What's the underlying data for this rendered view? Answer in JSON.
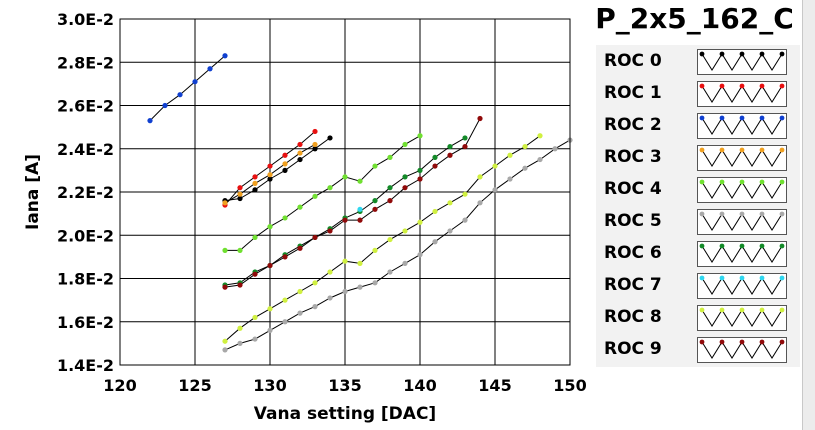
{
  "chart_data": {
    "type": "line",
    "title": "P_2x5_162_C",
    "xlabel": "Vana setting [DAC]",
    "ylabel": "Iana [A]",
    "xlim": [
      120,
      150
    ],
    "ylim": [
      0.014,
      0.03
    ],
    "x_ticks": [
      "120",
      "125",
      "130",
      "135",
      "140",
      "145",
      "150"
    ],
    "y_ticks": [
      "1.4E-2",
      "1.6E-2",
      "1.8E-2",
      "2.0E-2",
      "2.2E-2",
      "2.4E-2",
      "2.6E-2",
      "2.8E-2",
      "3.0E-2"
    ],
    "grid": true,
    "legend_position": "right",
    "series": [
      {
        "name": "ROC 0",
        "color": "#000000",
        "x": [
          127,
          128,
          129,
          130,
          131,
          132,
          133,
          134
        ],
        "y": [
          0.0216,
          0.0217,
          0.0221,
          0.0226,
          0.023,
          0.0235,
          0.024,
          0.0245
        ]
      },
      {
        "name": "ROC 1",
        "color": "#e81010",
        "x": [
          127,
          128,
          129,
          130,
          131,
          132,
          133
        ],
        "y": [
          0.0214,
          0.0222,
          0.0227,
          0.0232,
          0.0237,
          0.0242,
          0.0248
        ]
      },
      {
        "name": "ROC 2",
        "color": "#1040d0",
        "x": [
          122,
          123,
          124,
          125,
          126,
          127
        ],
        "y": [
          0.0253,
          0.026,
          0.0265,
          0.0271,
          0.0277,
          0.0283
        ]
      },
      {
        "name": "ROC 3",
        "color": "#f0a020",
        "x": [
          127,
          128,
          129,
          130,
          131,
          132,
          133
        ],
        "y": [
          0.0215,
          0.0219,
          0.0224,
          0.0228,
          0.0233,
          0.0238,
          0.0242
        ]
      },
      {
        "name": "ROC 4",
        "color": "#70e030",
        "x": [
          127,
          128,
          129,
          130,
          131,
          132,
          133,
          134,
          135,
          136,
          137,
          138,
          139,
          140
        ],
        "y": [
          0.0193,
          0.0193,
          0.0199,
          0.0204,
          0.0208,
          0.0213,
          0.0218,
          0.0222,
          0.0227,
          0.0225,
          0.0232,
          0.0236,
          0.0242,
          0.0246
        ]
      },
      {
        "name": "ROC 5",
        "color": "#a8a8a8",
        "x": [
          127,
          128,
          129,
          130,
          131,
          132,
          133,
          134,
          135,
          136,
          137,
          138,
          139,
          140,
          141,
          142,
          143,
          144,
          145,
          146,
          147,
          148,
          149,
          150
        ],
        "y": [
          0.0147,
          0.015,
          0.0152,
          0.0156,
          0.016,
          0.0164,
          0.0167,
          0.0171,
          0.0174,
          0.0176,
          0.0178,
          0.0183,
          0.0187,
          0.0191,
          0.0197,
          0.0202,
          0.0207,
          0.0215,
          0.0221,
          0.0226,
          0.0231,
          0.0235,
          0.024,
          0.0244
        ]
      },
      {
        "name": "ROC 6",
        "color": "#138a28",
        "x": [
          127,
          128,
          129,
          130,
          131,
          132,
          133,
          134,
          135,
          136,
          137,
          138,
          139,
          140,
          141,
          142,
          143
        ],
        "y": [
          0.0177,
          0.0178,
          0.0183,
          0.0186,
          0.0191,
          0.0195,
          0.0199,
          0.0203,
          0.0208,
          0.0211,
          0.0216,
          0.0222,
          0.0227,
          0.023,
          0.0236,
          0.0241,
          0.0245
        ]
      },
      {
        "name": "ROC 7",
        "color": "#30d8f0",
        "x": [
          136
        ],
        "y": [
          0.0212
        ]
      },
      {
        "name": "ROC 8",
        "color": "#d0f040",
        "x": [
          127,
          128,
          129,
          130,
          131,
          132,
          133,
          134,
          135,
          136,
          137,
          138,
          139,
          140,
          141,
          142,
          143,
          144,
          145,
          146,
          147,
          148
        ],
        "y": [
          0.0151,
          0.0157,
          0.0162,
          0.0166,
          0.017,
          0.0174,
          0.0178,
          0.0183,
          0.0188,
          0.0187,
          0.0193,
          0.0198,
          0.0202,
          0.0206,
          0.0211,
          0.0215,
          0.0219,
          0.0227,
          0.0232,
          0.0237,
          0.0241,
          0.0246
        ]
      },
      {
        "name": "ROC 9",
        "color": "#900a0a",
        "x": [
          127,
          128,
          129,
          130,
          131,
          132,
          133,
          134,
          135,
          136,
          137,
          138,
          139,
          140,
          141,
          142,
          143,
          144
        ],
        "y": [
          0.0176,
          0.0177,
          0.0182,
          0.0186,
          0.019,
          0.0194,
          0.0199,
          0.0202,
          0.0207,
          0.0207,
          0.0212,
          0.0216,
          0.0222,
          0.0226,
          0.0232,
          0.0237,
          0.0241,
          0.0254
        ]
      }
    ]
  }
}
